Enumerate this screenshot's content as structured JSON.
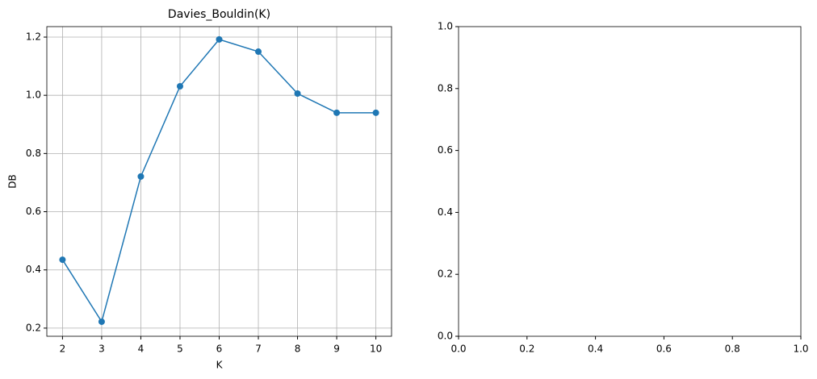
{
  "chart_data": [
    {
      "type": "line",
      "title": "Davies_Bouldin(K)",
      "xlabel": "K",
      "ylabel": "DB",
      "x": [
        2,
        3,
        4,
        5,
        6,
        7,
        8,
        9,
        10
      ],
      "series": [
        {
          "color": "#1f77b4",
          "values": [
            0.435,
            0.222,
            0.721,
            1.031,
            1.192,
            1.15,
            1.006,
            0.94,
            0.94
          ]
        }
      ],
      "xlim": [
        1.6,
        10.4
      ],
      "ylim": [
        0.172,
        1.236
      ],
      "xticks": [
        2,
        3,
        4,
        5,
        6,
        7,
        8,
        9,
        10
      ],
      "yticks": [
        0.2,
        0.4,
        0.6,
        0.8,
        {
          "value": 1,
          "label": "1.0"
        },
        1.2
      ],
      "grid": true,
      "marker": "circle"
    },
    {
      "type": "line",
      "xlim": [
        0,
        1
      ],
      "ylim": [
        0,
        1
      ],
      "xticks": [
        {
          "value": 0,
          "label": "0.0"
        },
        0.2,
        0.4,
        0.6,
        0.8,
        {
          "value": 1,
          "label": "1.0"
        }
      ],
      "yticks": [
        {
          "value": 0,
          "label": "0.0"
        },
        0.2,
        0.4,
        0.6,
        0.8,
        {
          "value": 1,
          "label": "1.0"
        }
      ],
      "grid": false
    }
  ]
}
